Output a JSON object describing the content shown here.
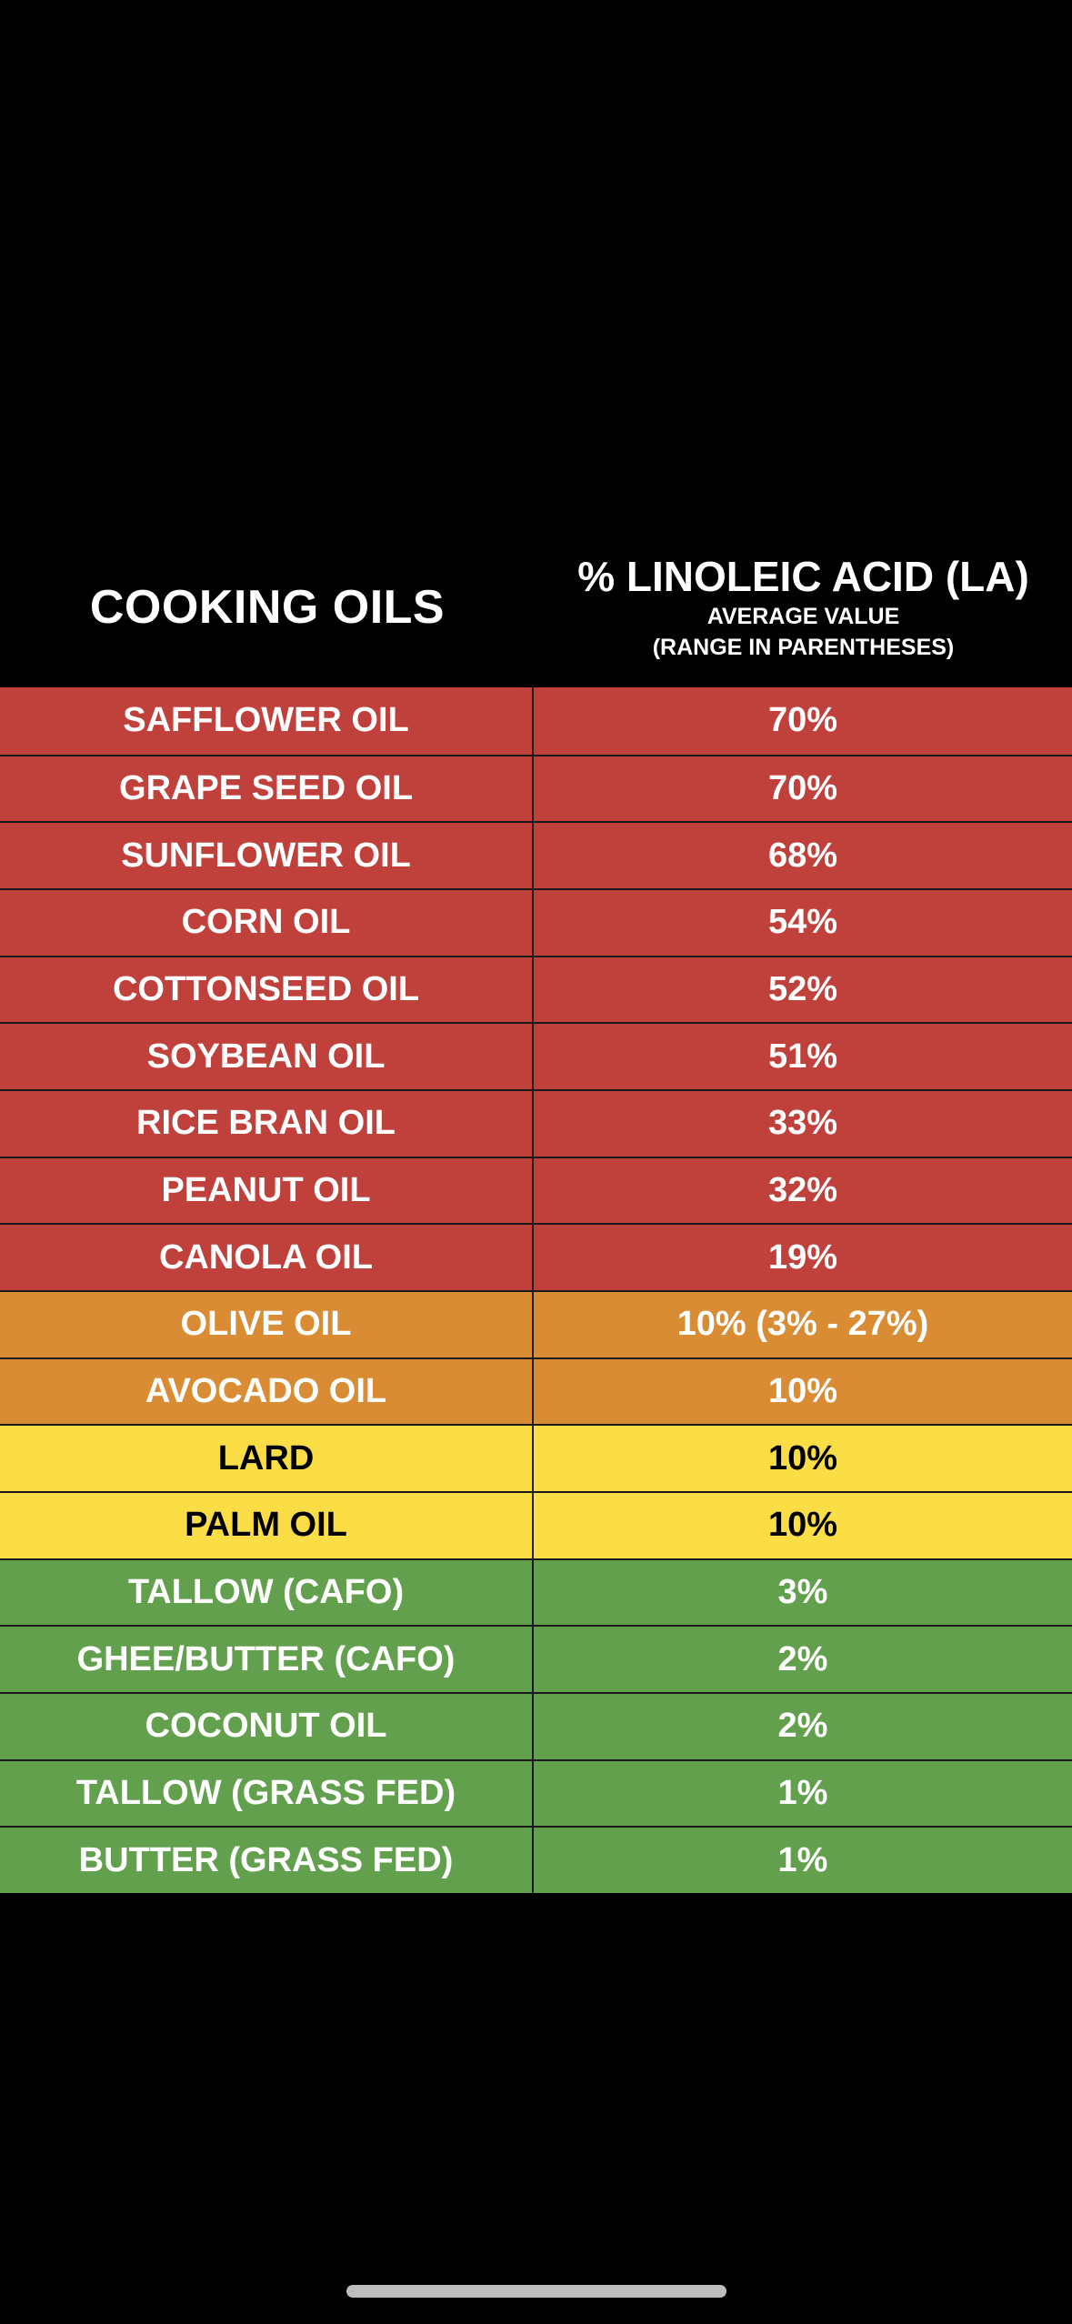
{
  "header": {
    "left_title": "COOKING OILS",
    "right_title": "% LINOLEIC ACID (LA)",
    "right_subtitle_1": "AVERAGE VALUE",
    "right_subtitle_2": "(RANGE IN PARENTHESES)"
  },
  "colors": {
    "red": "#c0403b",
    "orange": "#d98c33",
    "yellow": "#fbdd45",
    "green": "#62a04e",
    "text_light": "#ffffff",
    "text_dark": "#000000",
    "background": "#000000"
  },
  "chart_data": {
    "type": "table",
    "columns": [
      "COOKING OILS",
      "% LINOLEIC ACID (LA)"
    ],
    "rows": [
      {
        "name": "SAFFLOWER OIL",
        "value": "70%",
        "la_percent": 70,
        "color": "red"
      },
      {
        "name": "GRAPE SEED OIL",
        "value": "70%",
        "la_percent": 70,
        "color": "red"
      },
      {
        "name": "SUNFLOWER OIL",
        "value": "68%",
        "la_percent": 68,
        "color": "red"
      },
      {
        "name": "CORN OIL",
        "value": "54%",
        "la_percent": 54,
        "color": "red"
      },
      {
        "name": "COTTONSEED OIL",
        "value": "52%",
        "la_percent": 52,
        "color": "red"
      },
      {
        "name": "SOYBEAN OIL",
        "value": "51%",
        "la_percent": 51,
        "color": "red"
      },
      {
        "name": "RICE BRAN OIL",
        "value": "33%",
        "la_percent": 33,
        "color": "red"
      },
      {
        "name": "PEANUT OIL",
        "value": "32%",
        "la_percent": 32,
        "color": "red"
      },
      {
        "name": "CANOLA OIL",
        "value": "19%",
        "la_percent": 19,
        "color": "red"
      },
      {
        "name": "OLIVE OIL",
        "value": "10% (3% - 27%)",
        "la_percent": 10,
        "range": [
          3,
          27
        ],
        "color": "orange"
      },
      {
        "name": "AVOCADO OIL",
        "value": "10%",
        "la_percent": 10,
        "color": "orange"
      },
      {
        "name": "LARD",
        "value": "10%",
        "la_percent": 10,
        "color": "yellow"
      },
      {
        "name": "PALM OIL",
        "value": "10%",
        "la_percent": 10,
        "color": "yellow"
      },
      {
        "name": "TALLOW (CAFO)",
        "value": "3%",
        "la_percent": 3,
        "color": "green"
      },
      {
        "name": "GHEE/BUTTER (CAFO)",
        "value": "2%",
        "la_percent": 2,
        "color": "green"
      },
      {
        "name": "COCONUT OIL",
        "value": "2%",
        "la_percent": 2,
        "color": "green"
      },
      {
        "name": "TALLOW (GRASS FED)",
        "value": "1%",
        "la_percent": 1,
        "color": "green"
      },
      {
        "name": "BUTTER (GRASS FED)",
        "value": "1%",
        "la_percent": 1,
        "color": "green"
      }
    ]
  }
}
